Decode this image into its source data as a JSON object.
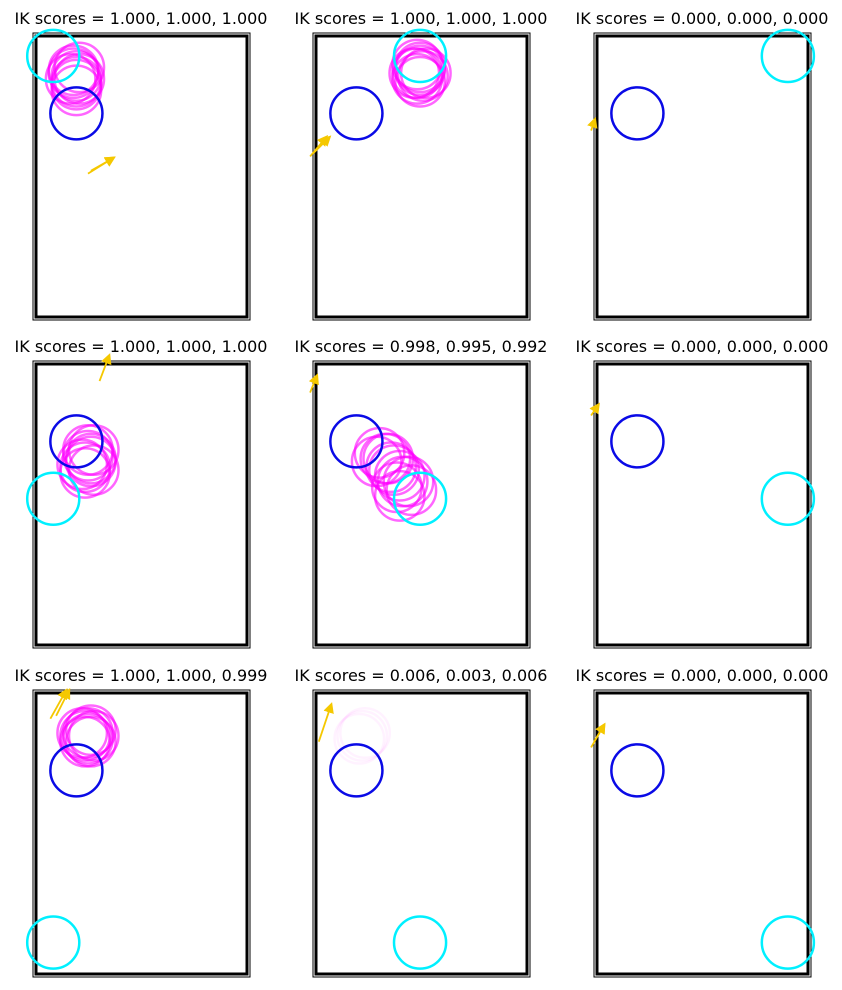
{
  "colors": {
    "frame": "#000000",
    "blue_circle": "#0a0ae6",
    "cyan_circle": "#00f0ff",
    "magenta_circle": "#ff00ff",
    "arrow": "#f5c800",
    "background": "#ffffff"
  },
  "chart_data": {
    "type": "grid-of-plots",
    "rows": 3,
    "cols": 3,
    "grid": false,
    "panels": [
      {
        "title": "IK scores = 1.000, 1.000, 1.000",
        "blue": [
          1.5,
          7.2
        ],
        "cyan": [
          0.7,
          9.2
        ],
        "magenta": [
          [
            1.4,
            8.7
          ],
          [
            1.5,
            8.5
          ],
          [
            1.6,
            8.8
          ],
          [
            1.3,
            8.4
          ],
          [
            1.5,
            8.2
          ],
          [
            1.6,
            8.4
          ],
          [
            1.4,
            8.6
          ],
          [
            1.5,
            8.3
          ],
          [
            1.5,
            8.0
          ]
        ],
        "magenta_opacity": 0.6,
        "arrows": [
          [
            1.9,
            5.1,
            2.7,
            5.6
          ],
          [
            2.0,
            5.2,
            2.7,
            5.6
          ]
        ]
      },
      {
        "title": "IK scores = 1.000, 1.000, 1.000",
        "blue": [
          1.5,
          7.2
        ],
        "cyan": [
          3.7,
          9.2
        ],
        "magenta": [
          [
            3.6,
            8.6
          ],
          [
            3.7,
            8.7
          ],
          [
            3.6,
            8.9
          ],
          [
            3.8,
            8.5
          ],
          [
            3.7,
            8.3
          ],
          [
            3.5,
            8.6
          ],
          [
            3.7,
            8.8
          ],
          [
            3.9,
            8.6
          ],
          [
            3.6,
            8.4
          ]
        ],
        "magenta_opacity": 0.6,
        "arrows": [
          [
            -0.1,
            5.7,
            0.4,
            6.3
          ],
          [
            0.0,
            5.8,
            0.5,
            6.3
          ]
        ]
      },
      {
        "title": "IK scores = 0.000, 0.000, 0.000",
        "blue": [
          1.5,
          7.2
        ],
        "cyan": [
          6.7,
          9.2
        ],
        "magenta": [],
        "magenta_opacity": 0.6,
        "arrows": [
          [
            -0.1,
            6.6,
            0.0,
            6.9
          ]
        ]
      },
      {
        "title": "IK scores = 1.000, 1.000, 1.000",
        "blue": [
          1.5,
          7.2
        ],
        "cyan": [
          0.7,
          5.2
        ],
        "magenta": [
          [
            2.0,
            6.6
          ],
          [
            1.9,
            6.9
          ],
          [
            1.7,
            6.4
          ],
          [
            2.1,
            6.2
          ],
          [
            1.8,
            6.1
          ],
          [
            2.0,
            6.5
          ],
          [
            1.9,
            6.7
          ],
          [
            2.1,
            6.9
          ],
          [
            1.8,
            6.3
          ]
        ],
        "magenta_opacity": 0.6,
        "arrows": [
          [
            2.3,
            9.3,
            2.6,
            10.1
          ]
        ]
      },
      {
        "title": "IK scores = 0.998, 0.995, 0.992",
        "blue": [
          1.5,
          7.2
        ],
        "cyan": [
          3.7,
          5.2
        ],
        "magenta": [
          [
            2.3,
            6.8
          ],
          [
            2.5,
            6.6
          ],
          [
            2.2,
            6.5
          ],
          [
            2.7,
            6.3
          ],
          [
            3.0,
            6.0
          ],
          [
            2.8,
            6.2
          ],
          [
            2.6,
            6.6
          ],
          [
            3.1,
            5.8
          ],
          [
            2.9,
            5.6
          ],
          [
            3.3,
            5.8
          ],
          [
            3.0,
            5.3
          ],
          [
            3.4,
            5.5
          ]
        ],
        "magenta_opacity": 0.6,
        "arrows": [
          [
            -0.1,
            8.9,
            0.1,
            9.4
          ]
        ]
      },
      {
        "title": "IK scores = 0.000, 0.000, 0.000",
        "blue": [
          1.5,
          7.2
        ],
        "cyan": [
          6.7,
          5.2
        ],
        "magenta": [],
        "magenta_opacity": 0.6,
        "arrows": [
          [
            -0.1,
            8.1,
            0.1,
            8.4
          ]
        ]
      },
      {
        "title": "IK scores = 1.000, 1.000, 0.999",
        "blue": [
          1.5,
          7.2
        ],
        "cyan": [
          0.7,
          1.2
        ],
        "magenta": [
          [
            1.8,
            8.4
          ],
          [
            2.0,
            8.6
          ],
          [
            1.9,
            8.3
          ],
          [
            1.7,
            8.5
          ],
          [
            2.0,
            8.2
          ],
          [
            1.9,
            8.5
          ],
          [
            1.8,
            8.2
          ],
          [
            2.1,
            8.4
          ]
        ],
        "magenta_opacity": 0.6,
        "arrows": [
          [
            0.6,
            9.0,
            1.1,
            9.9
          ],
          [
            0.8,
            9.1,
            1.2,
            9.9
          ]
        ]
      },
      {
        "title": "IK scores = 0.006, 0.003, 0.006",
        "blue": [
          1.5,
          7.2
        ],
        "cyan": [
          3.7,
          1.2
        ],
        "magenta": [
          [
            1.7,
            8.4
          ],
          [
            1.8,
            8.5
          ],
          [
            1.6,
            8.3
          ]
        ],
        "magenta_opacity": 0.05,
        "arrows": [
          [
            0.2,
            8.2,
            0.6,
            9.4
          ]
        ]
      },
      {
        "title": "IK scores = 0.000, 0.000, 0.000",
        "blue": [
          1.5,
          7.2
        ],
        "cyan": [
          6.7,
          1.2
        ],
        "magenta": [],
        "magenta_opacity": 0.6,
        "arrows": [
          [
            -0.1,
            8.0,
            0.3,
            8.7
          ],
          [
            0.0,
            8.2,
            0.3,
            8.7
          ]
        ]
      }
    ],
    "circle_radius": 0.9,
    "xlim": [
      0,
      7.5
    ],
    "ylim": [
      0,
      10
    ]
  }
}
